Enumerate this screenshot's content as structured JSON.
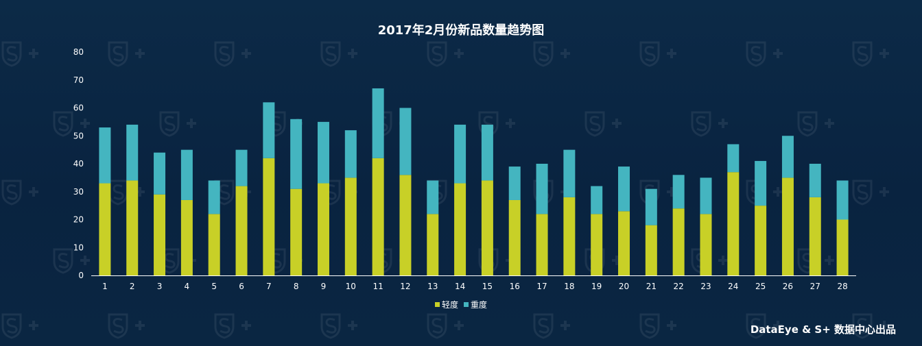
{
  "chart_data": {
    "type": "bar",
    "stacked": true,
    "title": "2017年2月份新品数量趋势图",
    "categories": [
      "1",
      "2",
      "3",
      "4",
      "5",
      "6",
      "7",
      "8",
      "9",
      "10",
      "11",
      "12",
      "13",
      "14",
      "15",
      "16",
      "17",
      "18",
      "19",
      "20",
      "21",
      "22",
      "23",
      "24",
      "25",
      "26",
      "27",
      "28"
    ],
    "series": [
      {
        "name": "轻度",
        "color": "#c8d027",
        "values": [
          33,
          34,
          29,
          27,
          22,
          32,
          42,
          31,
          33,
          35,
          42,
          36,
          22,
          33,
          34,
          27,
          22,
          28,
          22,
          23,
          18,
          24,
          22,
          37,
          25,
          35,
          28,
          20
        ]
      },
      {
        "name": "重度",
        "color": "#44b5c0",
        "values": [
          20,
          20,
          15,
          18,
          12,
          13,
          20,
          25,
          22,
          17,
          25,
          24,
          12,
          21,
          20,
          12,
          18,
          17,
          10,
          16,
          13,
          12,
          13,
          10,
          16,
          15,
          12,
          14
        ]
      }
    ],
    "ylim": [
      0,
      80
    ],
    "yticks": [
      0,
      10,
      20,
      30,
      40,
      50,
      60,
      70,
      80
    ],
    "xlabel": "",
    "ylabel": "",
    "grid": false,
    "legend_position": "bottom-center"
  },
  "credit": "DataEye & S+ 数据中心出品",
  "colors": {
    "background": "#0a2540",
    "text": "#ffffff",
    "axis": "#ffffff"
  }
}
